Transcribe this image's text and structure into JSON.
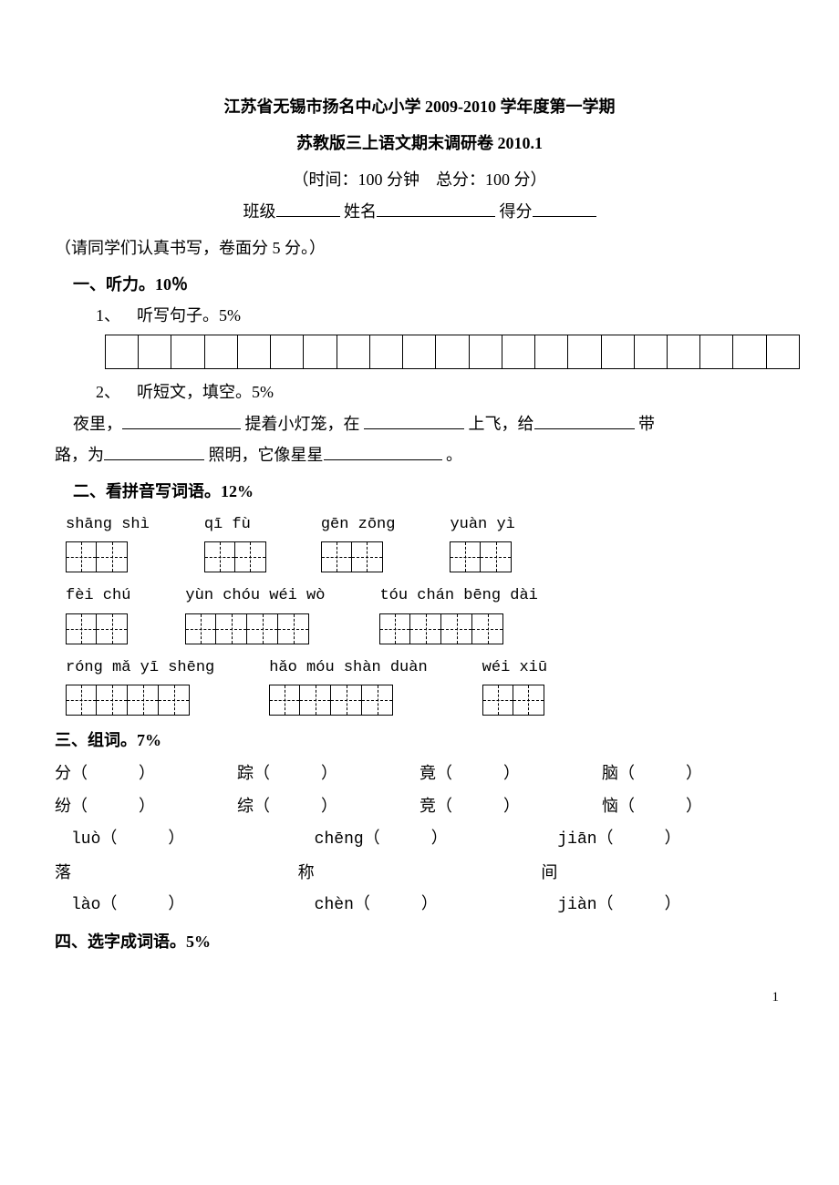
{
  "header": {
    "line1": "江苏省无锡市扬名中心小学 2009-2010 学年度第一学期",
    "line2": "苏教版三上语文期末调研卷 2010.1",
    "time_score": "（时间：100 分钟 总分：100 分）",
    "class_label": "班级",
    "name_label": "姓名",
    "score_label": "得分"
  },
  "instructions": "（请同学们认真书写，卷面分 5 分。）",
  "listening": {
    "section_title": "一、听力。10％",
    "item1_label": "1、 听写句子。5%",
    "box_count": 21,
    "item2_label": "2、 听短文，填空。5%",
    "fill_head": "夜里，",
    "fill_a": "提着小灯笼，在",
    "fill_b": "上飞，给",
    "fill_c": "带",
    "line2_head": "路，为",
    "fill_d": "照明，它像星星",
    "end": "。"
  },
  "pinyin": {
    "section_title": "二、看拼音写词语。12%",
    "rows": [
      [
        {
          "label": "shāng shì",
          "n": 2
        },
        {
          "label": "qī fù",
          "n": 2
        },
        {
          "label": "gēn zōng",
          "n": 2
        },
        {
          "label": "yuàn yì",
          "n": 2
        }
      ],
      [
        {
          "label": "fèi chú",
          "n": 2
        },
        {
          "label": "yùn chóu wéi wò",
          "n": 4
        },
        {
          "label": "tóu chán bēng dài",
          "n": 4
        }
      ],
      [
        {
          "label": "róng mǎ yī shēng",
          "n": 4
        },
        {
          "label": "hǎo móu shàn duàn",
          "n": 4
        },
        {
          "label": "wéi xiū",
          "n": 2
        }
      ]
    ]
  },
  "zuci": {
    "section_title": "三、组词。7%",
    "pairs": [
      [
        "分",
        "踪",
        "竟",
        "脑"
      ],
      [
        "纷",
        "综",
        "竞",
        "恼"
      ]
    ],
    "poly": [
      {
        "p1": "luò",
        "p2": "chēng",
        "p3": "jiān"
      },
      {
        "h1": "落",
        "h2": "称",
        "h3": "间"
      },
      {
        "p1": "lào",
        "p2": "chèn",
        "p3": "jiàn"
      }
    ]
  },
  "xuanzi": {
    "section_title": "四、选字成词语。5%"
  },
  "page_number": "1"
}
